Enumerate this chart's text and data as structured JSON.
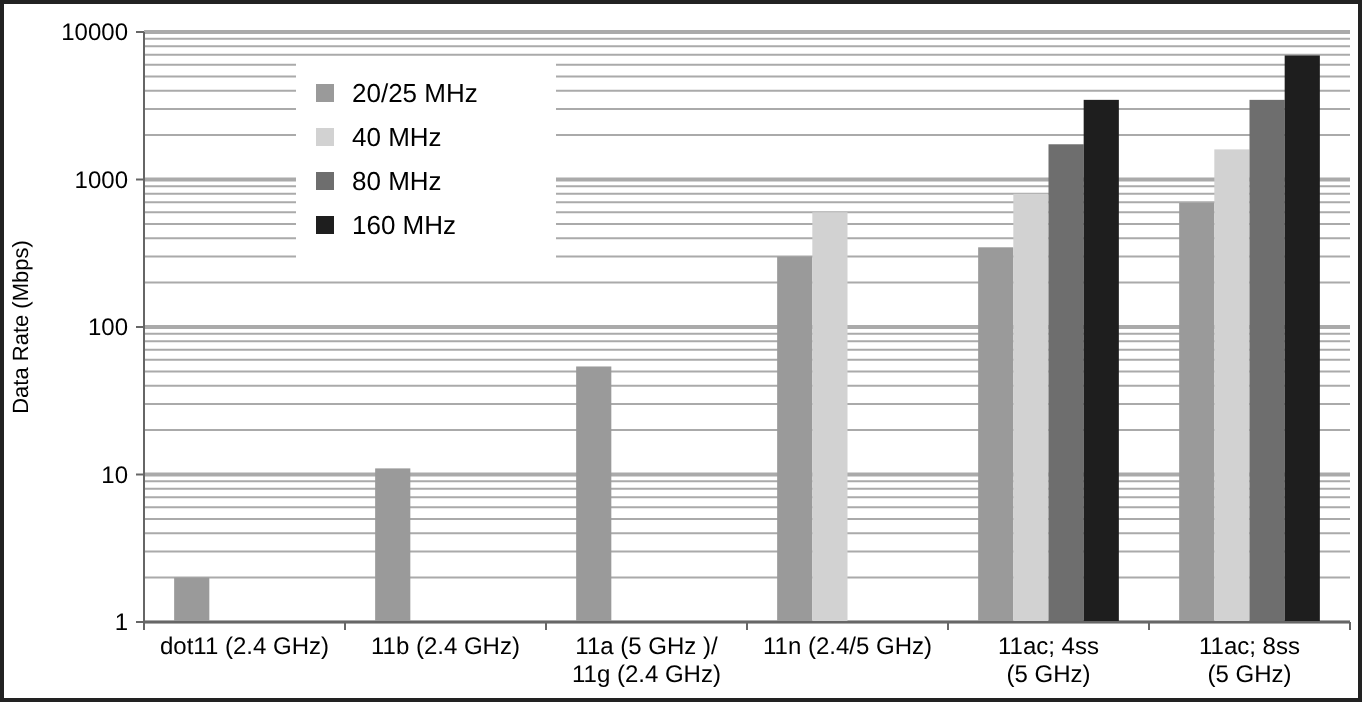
{
  "chart_data": {
    "type": "bar",
    "ylabel": "Data Rate (Mbps)",
    "categories": [
      "dot11 (2.4 GHz)",
      "11b (2.4 GHz)",
      "11a (5 GHz )/\n11g (2.4 GHz)",
      "11n (2.4/5 GHz)",
      "11ac; 4ss\n(5 GHz)",
      "11ac; 8ss\n(5 GHz)"
    ],
    "series": [
      {
        "name": "20/25 MHz",
        "color": "#9a9a9a",
        "values": [
          2,
          11,
          54,
          300,
          347,
          693
        ]
      },
      {
        "name": "40 MHz",
        "color": "#d2d2d2",
        "values": [
          null,
          null,
          null,
          600,
          800,
          1600
        ]
      },
      {
        "name": "80 MHz",
        "color": "#6e6e6e",
        "values": [
          null,
          null,
          null,
          null,
          1733,
          3467
        ]
      },
      {
        "name": "160 MHz",
        "color": "#1e1e1e",
        "values": [
          null,
          null,
          null,
          null,
          3467,
          6933
        ]
      }
    ],
    "log": true,
    "ylim": [
      1,
      10000
    ],
    "yticks": [
      1,
      10,
      100,
      1000,
      10000
    ],
    "grid": true,
    "legend": "top left"
  }
}
